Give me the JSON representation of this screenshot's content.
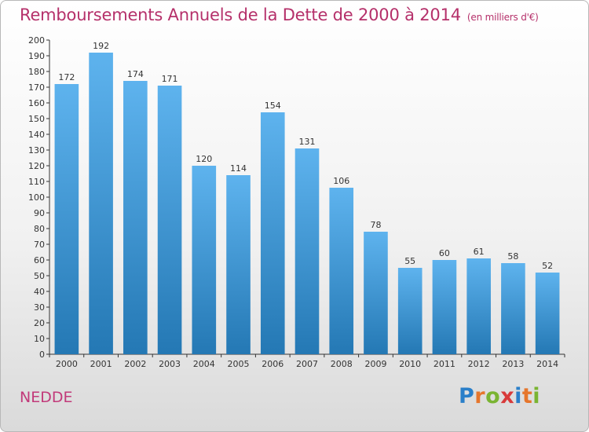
{
  "chart_data": {
    "type": "bar",
    "title": "Remboursements Annuels de la Dette de 2000 à 2014",
    "unit": "(en milliers d'€)",
    "categories": [
      "2000",
      "2001",
      "2002",
      "2003",
      "2004",
      "2005",
      "2006",
      "2007",
      "2008",
      "2009",
      "2010",
      "2011",
      "2012",
      "2013",
      "2014"
    ],
    "values": [
      172,
      192,
      174,
      171,
      120,
      114,
      154,
      131,
      106,
      78,
      55,
      60,
      61,
      58,
      52
    ],
    "ylim": [
      0,
      200
    ],
    "yticks": [
      0,
      10,
      20,
      30,
      40,
      50,
      60,
      70,
      80,
      90,
      100,
      110,
      120,
      130,
      140,
      150,
      160,
      170,
      180,
      190,
      200
    ],
    "grid": false,
    "bar_color_top": "#5eb3ee",
    "bar_color_bottom": "#2478b4"
  },
  "footer": {
    "location": "NEDDE",
    "logo_letters": [
      "P",
      "r",
      "o",
      "x",
      "i",
      "t",
      "i"
    ],
    "logo_colors": [
      "#2a7fc9",
      "#e6762c",
      "#7ab432",
      "#d83a3a",
      "#2a7fc9",
      "#e6762c",
      "#7ab432"
    ]
  },
  "colors": {
    "title": "#b5306a",
    "axis": "#333333"
  }
}
